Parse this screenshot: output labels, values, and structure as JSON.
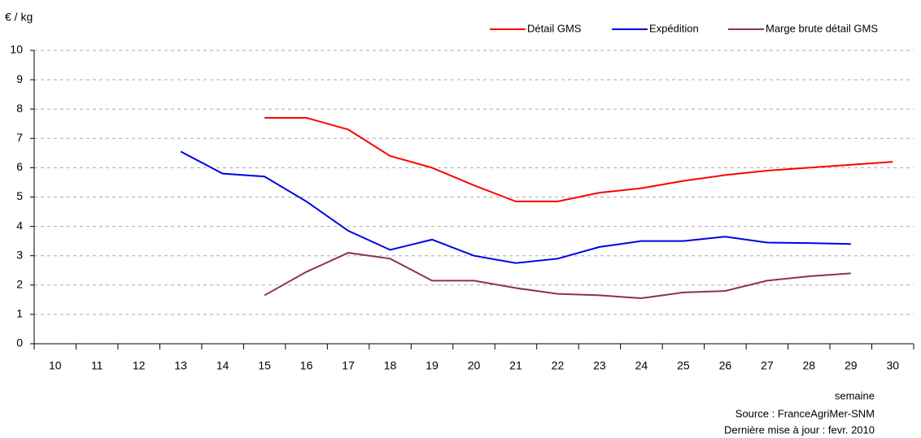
{
  "chart_data": {
    "type": "line",
    "y_label": "€ / kg",
    "x_label": "semaine",
    "source": "Source : FranceAgriMer-SNM",
    "updated": "Dernière mise à jour : fevr. 2010",
    "categories": [
      10,
      11,
      12,
      13,
      14,
      15,
      16,
      17,
      18,
      19,
      20,
      21,
      22,
      23,
      24,
      25,
      26,
      27,
      28,
      29,
      30
    ],
    "series": [
      {
        "name": "Détail GMS",
        "color": "#ff0000",
        "values": [
          null,
          null,
          null,
          null,
          null,
          7.7,
          7.7,
          7.3,
          6.4,
          6.0,
          5.4,
          4.85,
          4.85,
          5.15,
          5.3,
          5.55,
          5.75,
          5.9,
          6.0,
          6.1,
          6.2
        ]
      },
      {
        "name": "Expédition",
        "color": "#0000e6",
        "values": [
          null,
          null,
          null,
          6.55,
          5.8,
          5.7,
          4.85,
          3.85,
          3.2,
          3.55,
          3.0,
          2.75,
          2.9,
          3.3,
          3.5,
          3.5,
          3.65,
          3.45,
          3.43,
          3.4,
          null
        ]
      },
      {
        "name": "Marge brute détail GMS",
        "color": "#8b2f5f",
        "values": [
          null,
          null,
          null,
          null,
          null,
          1.65,
          2.45,
          3.1,
          2.9,
          2.15,
          2.15,
          1.9,
          1.7,
          1.65,
          1.55,
          1.75,
          1.8,
          2.15,
          2.3,
          2.4,
          null
        ]
      }
    ],
    "ylim": [
      0,
      10
    ],
    "yticks": [
      0,
      1,
      2,
      3,
      4,
      5,
      6,
      7,
      8,
      9,
      10
    ],
    "grid": true,
    "legend": "top-right"
  }
}
